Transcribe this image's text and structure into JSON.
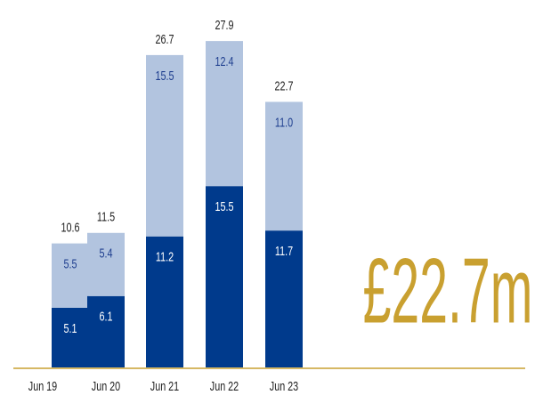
{
  "chart_data": {
    "type": "stacked_bar",
    "categories": [
      "Jun 19",
      "Jun 20",
      "Jun 21",
      "Jun 22",
      "Jun 23"
    ],
    "series": [
      {
        "color": "#003a8c",
        "values": [
          5.1,
          6.1,
          11.2,
          15.5,
          11.7
        ]
      },
      {
        "color": "#b2c4df",
        "values": [
          5.5,
          5.4,
          15.5,
          12.4,
          11.0
        ],
        "value_labels": [
          "5.5",
          "5.4",
          "15.5",
          "12.4",
          "11.0"
        ]
      }
    ],
    "totals": [
      10.6,
      11.5,
      26.7,
      27.9,
      22.7
    ],
    "annotation": "£22.7m"
  }
}
